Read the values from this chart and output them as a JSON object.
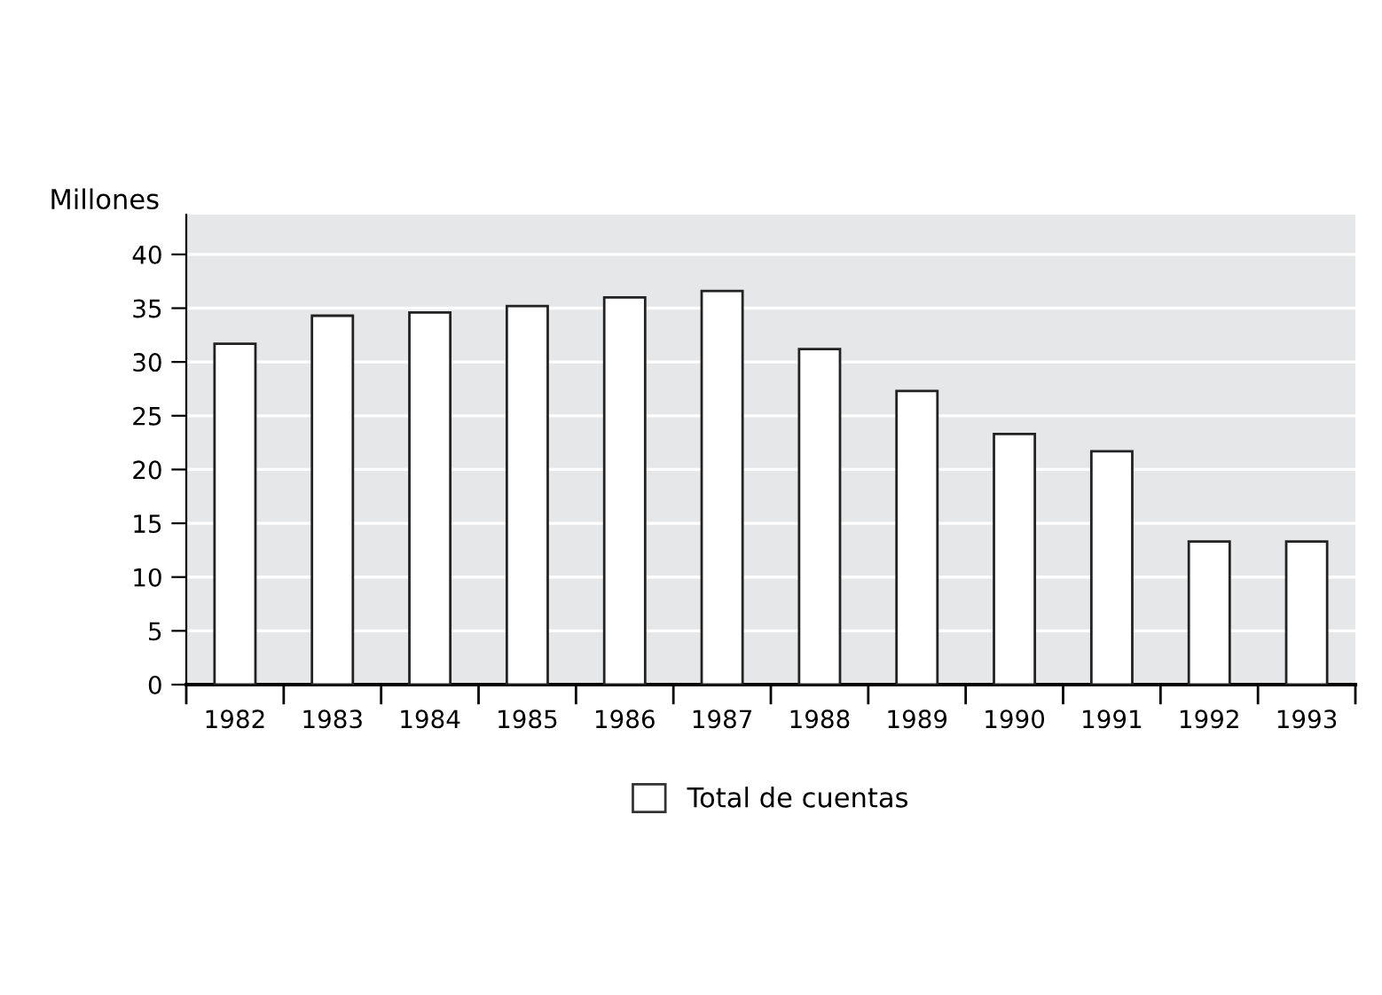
{
  "chart_data": {
    "type": "bar",
    "ylabel": "Millones",
    "categories": [
      "1982",
      "1983",
      "1984",
      "1985",
      "1986",
      "1987",
      "1988",
      "1989",
      "1990",
      "1991",
      "1992",
      "1993"
    ],
    "series": [
      {
        "name": "Total de cuentas",
        "color": "#ffffff",
        "values": [
          31.7,
          34.3,
          34.6,
          35.2,
          36.0,
          36.6,
          31.2,
          27.3,
          23.3,
          21.7,
          13.3,
          13.3
        ]
      }
    ],
    "ylim": [
      0,
      43.7
    ],
    "yticks": [
      0,
      5,
      10,
      15,
      20,
      25,
      30,
      35,
      40
    ],
    "grid": "y",
    "legend": "bottom"
  }
}
